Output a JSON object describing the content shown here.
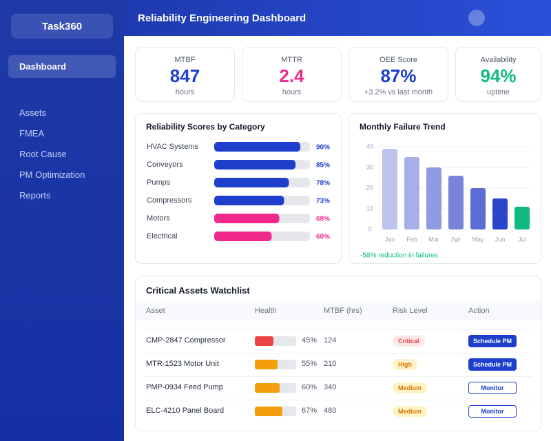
{
  "app": {
    "name": "Task360",
    "nav": [
      "Dashboard",
      "Assets",
      "FMEA",
      "Root Cause",
      "PM Optimization",
      "Reports"
    ]
  },
  "header": {
    "title": "Reliability Engineering Dashboard"
  },
  "kpis": [
    {
      "label": "MTBF",
      "value": "847",
      "sub": "hours",
      "color": "#1d3fcc"
    },
    {
      "label": "MTTR",
      "value": "2.4",
      "sub": "hours",
      "color": "#ec2a8c"
    },
    {
      "label": "OEE Score",
      "value": "87%",
      "sub": "+3.2% vs last month",
      "color": "#1d3fcc"
    },
    {
      "label": "Availability",
      "value": "94%",
      "sub": "uptime",
      "color": "#10b981"
    }
  ],
  "chart_data": [
    {
      "type": "hbar",
      "title": "Reliability Scores by Category",
      "categories": [
        "HVAC Systems",
        "Conveyors",
        "Pumps",
        "Compressors",
        "Motors",
        "Electrical"
      ],
      "values": [
        90,
        85,
        78,
        73,
        68,
        60
      ],
      "value_labels": [
        "90%",
        "85%",
        "78%",
        "73%",
        "68%",
        "60%"
      ],
      "colors": [
        "#1d3fcc",
        "#1d3fcc",
        "#1d3fcc",
        "#1d3fcc",
        "#f0288c",
        "#f0288c"
      ],
      "xlim": [
        0,
        100
      ]
    },
    {
      "type": "bar",
      "title": "Monthly Failure Trend",
      "categories": [
        "Jan",
        "Feb",
        "Mar",
        "Apr",
        "May",
        "Jun",
        "Jul"
      ],
      "values": [
        39,
        35,
        30,
        26,
        20,
        15,
        11
      ],
      "colors": [
        "#bcc3ec",
        "#a6afe6",
        "#8f9ae0",
        "#7884da",
        "#5c6dd6",
        "#2a44cc",
        "#10b981"
      ],
      "ylim": [
        0,
        40
      ],
      "yticks": [
        0,
        10,
        20,
        30,
        40
      ],
      "grid": true,
      "annotation": "-58% reduction in failures"
    }
  ],
  "table": {
    "title": "Critical Assets Watchlist",
    "columns": [
      "Asset",
      "Health",
      "MTBF (hrs)",
      "Risk Level",
      "Action"
    ],
    "rows": [
      {
        "asset": "CMP-2847 Compressor",
        "health": 45,
        "health_label": "45%",
        "health_color": "#ef4444",
        "mtbf": 124,
        "risk": "Critical",
        "action": "Schedule PM"
      },
      {
        "asset": "MTR-1523 Motor Unit",
        "health": 55,
        "health_label": "55%",
        "health_color": "#f59e0b",
        "mtbf": 210,
        "risk": "High",
        "action": "Schedule PM"
      },
      {
        "asset": "PMP-0934 Feed Pump",
        "health": 60,
        "health_label": "60%",
        "health_color": "#f59e0b",
        "mtbf": 340,
        "risk": "Medium",
        "action": "Monitor"
      },
      {
        "asset": "ELC-4210 Panel Board",
        "health": 67,
        "health_label": "67%",
        "health_color": "#f59e0b",
        "mtbf": 480,
        "risk": "Medium",
        "action": "Monitor"
      }
    ]
  }
}
